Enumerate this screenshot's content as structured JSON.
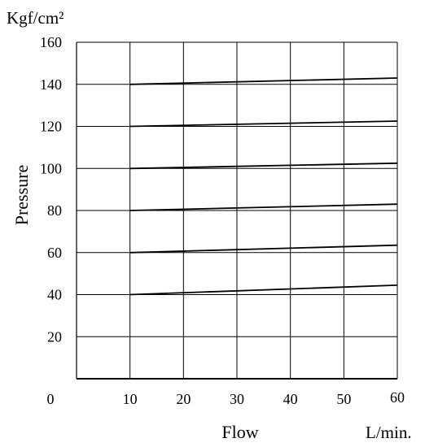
{
  "chart_data": {
    "type": "line",
    "ylabel": "Pressure",
    "yunit": "Kgf/cm²",
    "xlabel": "Flow",
    "xunit": "L/min.",
    "xlim": [
      0,
      60
    ],
    "ylim": [
      0,
      160
    ],
    "x_ticks": [
      "0",
      "10",
      "20",
      "30",
      "40",
      "50",
      "60"
    ],
    "y_ticks": [
      "20",
      "40",
      "60",
      "80",
      "100",
      "120",
      "140",
      "160"
    ],
    "grid": true,
    "series": [
      {
        "x": [
          10,
          60
        ],
        "y": [
          140,
          143
        ]
      },
      {
        "x": [
          10,
          60
        ],
        "y": [
          120,
          122.5
        ]
      },
      {
        "x": [
          10,
          60
        ],
        "y": [
          100,
          102.5
        ]
      },
      {
        "x": [
          10,
          60
        ],
        "y": [
          80,
          83
        ]
      },
      {
        "x": [
          10,
          60
        ],
        "y": [
          60,
          63.5
        ]
      },
      {
        "x": [
          10,
          60
        ],
        "y": [
          40,
          44.5
        ]
      }
    ],
    "line_color": "#000000",
    "grid_color": "#000000"
  }
}
